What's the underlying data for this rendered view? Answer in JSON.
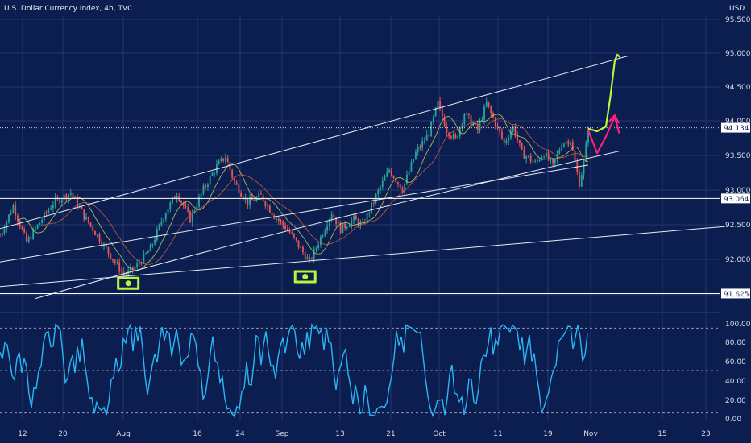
{
  "header": {
    "title": "U.S. Dollar Currency Index, 4h, TVC",
    "currency": "USD"
  },
  "colors": {
    "background": "#0c1d4f",
    "grid": "#24386f",
    "bull": "#26a69a",
    "bear": "#ef5350",
    "channel": "#e8ecf5",
    "stoch": "#29b6f6",
    "green_arrow": "#b9f53b",
    "magenta_arrow": "#ff1f7a",
    "marker": "#b9f53b"
  },
  "chart_data": [
    {
      "type": "candlestick",
      "title": "U.S. Dollar Currency Index, 4h, TVC",
      "ylabel": "USD",
      "ylim": [
        91.45,
        95.75
      ],
      "x_ticks": [
        "12",
        "20",
        "Aug",
        "16",
        "24",
        "Sep",
        "13",
        "21",
        "Oct",
        "11",
        "19",
        "Nov",
        "15",
        "23"
      ],
      "y_ticks": [
        "95.500",
        "95.000",
        "94.500",
        "94.000",
        "93.500",
        "93.000",
        "92.500",
        "92.000",
        "91.500"
      ],
      "price_labels": [
        "94.134",
        "93.064",
        "91.625"
      ],
      "horizontal_levels": [
        94.134,
        93.064,
        91.625
      ],
      "swing_path": [
        [
          0,
          92.5
        ],
        [
          3,
          92.95
        ],
        [
          6,
          92.4
        ],
        [
          9,
          92.7
        ],
        [
          12,
          93.0
        ],
        [
          16,
          93.15
        ],
        [
          19,
          92.8
        ],
        [
          23,
          92.4
        ],
        [
          26,
          92.1
        ],
        [
          28,
          91.9
        ],
        [
          31,
          92.05
        ],
        [
          34,
          92.3
        ],
        [
          37,
          92.8
        ],
        [
          40,
          93.15
        ],
        [
          43,
          92.75
        ],
        [
          46,
          93.2
        ],
        [
          49,
          93.55
        ],
        [
          51,
          93.7
        ],
        [
          53,
          93.3
        ],
        [
          56,
          93.0
        ],
        [
          59,
          93.1
        ],
        [
          62,
          92.8
        ],
        [
          65,
          92.6
        ],
        [
          68,
          92.3
        ],
        [
          70,
          92.1
        ],
        [
          72,
          92.4
        ],
        [
          75,
          92.85
        ],
        [
          77,
          92.6
        ],
        [
          80,
          92.75
        ],
        [
          82,
          92.65
        ],
        [
          85,
          93.1
        ],
        [
          88,
          93.5
        ],
        [
          91,
          93.2
        ],
        [
          94,
          93.75
        ],
        [
          97,
          94.05
        ],
        [
          99,
          94.5
        ],
        [
          101,
          94.1
        ],
        [
          103,
          93.95
        ],
        [
          105,
          94.35
        ],
        [
          108,
          94.1
        ],
        [
          110,
          94.5
        ],
        [
          112,
          94.2
        ],
        [
          114,
          93.9
        ],
        [
          116,
          94.15
        ],
        [
          118,
          93.75
        ],
        [
          121,
          93.6
        ],
        [
          123,
          93.75
        ],
        [
          125,
          93.55
        ],
        [
          127,
          93.9
        ],
        [
          129,
          93.95
        ],
        [
          130,
          93.6
        ],
        [
          131,
          93.3
        ],
        [
          132,
          93.6
        ],
        [
          133,
          94.134
        ]
      ],
      "channel_lines": [
        {
          "from": [
            -2,
            92.57
          ],
          "to": [
            142,
            95.22
          ]
        },
        {
          "from": [
            -2,
            92.08
          ],
          "to": [
            133,
            93.57
          ]
        },
        {
          "from": [
            -2,
            91.72
          ],
          "to": [
            164,
            92.64
          ]
        }
      ],
      "rising_trend": {
        "from": [
          8,
          91.55
        ],
        "to": [
          140,
          93.78
        ]
      },
      "projection_up": [
        [
          133,
          94.12
        ],
        [
          135,
          94.08
        ],
        [
          137,
          94.15
        ],
        [
          138,
          94.6
        ],
        [
          139,
          95.15
        ],
        [
          139.6,
          95.24
        ],
        [
          140.2,
          95.2
        ]
      ],
      "projection_alt": [
        [
          133,
          94.1
        ],
        [
          135,
          93.75
        ],
        [
          137,
          94.0
        ],
        [
          139,
          94.3
        ],
        [
          140,
          94.05
        ]
      ],
      "markers": [
        {
          "x": 29,
          "y": 91.78
        },
        {
          "x": 69,
          "y": 91.88
        }
      ]
    },
    {
      "type": "line",
      "title": "",
      "ylim": [
        -3,
        103
      ],
      "y_ticks": [
        "100.00",
        "80.00",
        "60.00",
        "40.00",
        "20.00",
        "0.00"
      ],
      "reference_levels": [
        95,
        50,
        5
      ]
    }
  ]
}
